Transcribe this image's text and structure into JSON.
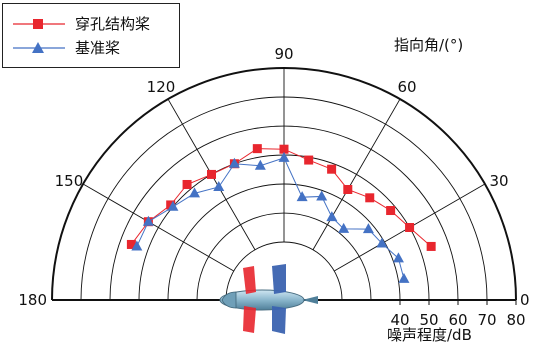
{
  "chart_data": {
    "type": "polar-line",
    "angle_axis": {
      "label": "指向角/(°)",
      "range": [
        0,
        180
      ],
      "ticks": [
        0,
        30,
        60,
        90,
        120,
        150,
        180
      ],
      "tick_labels": [
        "0",
        "30",
        "60",
        "90",
        "120",
        "150",
        "180"
      ]
    },
    "radial_axis": {
      "label": "噪声程度/dB",
      "range": [
        0,
        80
      ],
      "ticks": [
        40,
        50,
        60,
        70,
        80
      ],
      "tick_labels": [
        "40",
        "50",
        "60",
        "70",
        "80"
      ],
      "grid_rings": [
        20,
        30,
        40,
        50,
        60,
        70,
        80
      ]
    },
    "legend_position": "top-left",
    "series": [
      {
        "name": "穿孔结构桨",
        "color": "#e8262e",
        "marker": "square",
        "angles": [
          20,
          30,
          40,
          50,
          60,
          70,
          80,
          90,
          100,
          110,
          120,
          130,
          140,
          150,
          160
        ],
        "values": [
          54,
          50,
          48,
          46,
          44,
          48,
          49,
          52,
          53,
          50,
          50,
          52,
          51,
          54,
          56
        ]
      },
      {
        "name": "基准桨",
        "color": "#4472c4",
        "marker": "triangle",
        "angles": [
          10,
          20,
          30,
          40,
          50,
          60,
          70,
          80,
          90,
          100,
          110,
          120,
          130,
          140,
          150,
          160
        ],
        "values": [
          42,
          42,
          39,
          38,
          32,
          33,
          38,
          36,
          49,
          47,
          50,
          45,
          48,
          50,
          54,
          54
        ]
      }
    ]
  }
}
